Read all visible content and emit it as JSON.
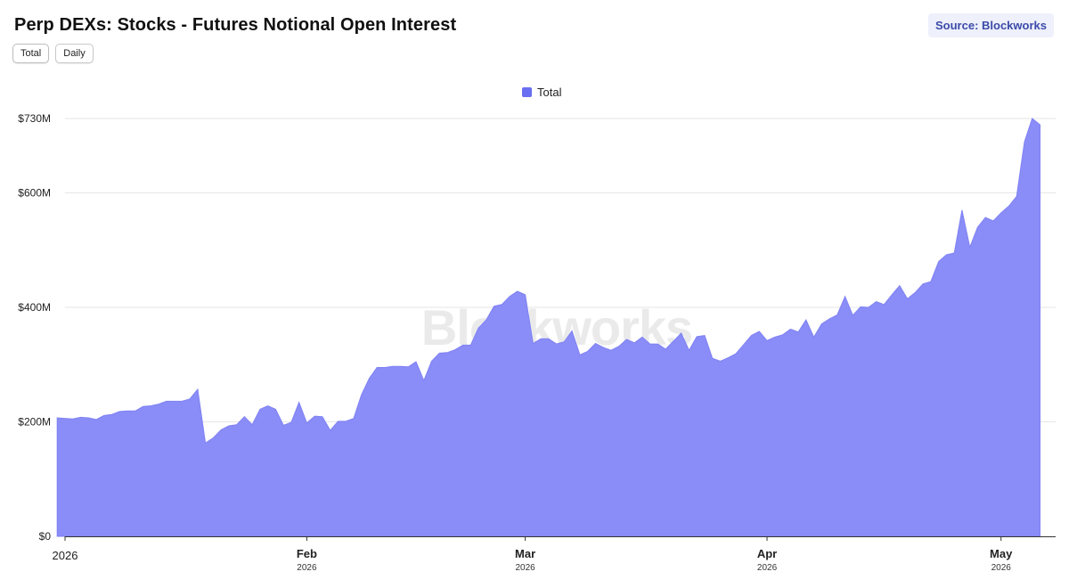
{
  "header": {
    "title": "Perp DEXs: Stocks - Futures Notional Open Interest",
    "source_label": "Source: Blockworks"
  },
  "toggles": [
    {
      "label": "Total"
    },
    {
      "label": "Daily"
    }
  ],
  "watermark": "Blockworks",
  "colors": {
    "area_fill": "#8a8cf7",
    "area_line": "#7f82f3",
    "legend_swatch": "#6a6ef0",
    "grid": "#e6e6e6"
  },
  "chart_data": {
    "type": "area",
    "title": "Perp DEXs: Stocks - Futures Notional Open Interest",
    "xlabel": "",
    "ylabel": "",
    "grid": true,
    "legend_position": "top-center",
    "xlim": [
      "2026-01-01",
      "2026-05-08"
    ],
    "ylim": [
      0,
      730
    ],
    "y_unit": "millions USD",
    "y_ticks": [
      {
        "value": 0,
        "label": "$0"
      },
      {
        "value": 200,
        "label": "$200M"
      },
      {
        "value": 400,
        "label": "$400M"
      },
      {
        "value": 600,
        "label": "$600M"
      },
      {
        "value": 730,
        "label": "$730M"
      }
    ],
    "x_ticks": [
      {
        "date": "2026-01-01",
        "label": "2026",
        "sublabel": ""
      },
      {
        "date": "2026-02-01",
        "label": "Feb",
        "sublabel": "2026"
      },
      {
        "date": "2026-03-01",
        "label": "Mar",
        "sublabel": "2026"
      },
      {
        "date": "2026-04-01",
        "label": "Apr",
        "sublabel": "2026"
      },
      {
        "date": "2026-05-01",
        "label": "May",
        "sublabel": "2026"
      }
    ],
    "series": [
      {
        "name": "Total",
        "points": [
          [
            "2025-12-31",
            207
          ],
          [
            "2026-01-02",
            205
          ],
          [
            "2026-01-03",
            208
          ],
          [
            "2026-01-04",
            207
          ],
          [
            "2026-01-05",
            204
          ],
          [
            "2026-01-06",
            211
          ],
          [
            "2026-01-07",
            213
          ],
          [
            "2026-01-08",
            218
          ],
          [
            "2026-01-09",
            219
          ],
          [
            "2026-01-10",
            219
          ],
          [
            "2026-01-11",
            227
          ],
          [
            "2026-01-12",
            228
          ],
          [
            "2026-01-13",
            231
          ],
          [
            "2026-01-14",
            236
          ],
          [
            "2026-01-15",
            236
          ],
          [
            "2026-01-16",
            236
          ],
          [
            "2026-01-17",
            240
          ],
          [
            "2026-01-18",
            257
          ],
          [
            "2026-01-19",
            163
          ],
          [
            "2026-01-20",
            172
          ],
          [
            "2026-01-21",
            186
          ],
          [
            "2026-01-22",
            193
          ],
          [
            "2026-01-23",
            195
          ],
          [
            "2026-01-24",
            209
          ],
          [
            "2026-01-25",
            195
          ],
          [
            "2026-01-26",
            222
          ],
          [
            "2026-01-27",
            228
          ],
          [
            "2026-01-28",
            222
          ],
          [
            "2026-01-29",
            194
          ],
          [
            "2026-01-30",
            199
          ],
          [
            "2026-01-31",
            234
          ],
          [
            "2026-02-01",
            198
          ],
          [
            "2026-02-02",
            210
          ],
          [
            "2026-02-03",
            209
          ],
          [
            "2026-02-04",
            185
          ],
          [
            "2026-02-05",
            201
          ],
          [
            "2026-02-06",
            201
          ],
          [
            "2026-02-07",
            206
          ],
          [
            "2026-02-08",
            247
          ],
          [
            "2026-02-09",
            276
          ],
          [
            "2026-02-10",
            295
          ],
          [
            "2026-02-11",
            295
          ],
          [
            "2026-02-12",
            297
          ],
          [
            "2026-02-13",
            297
          ],
          [
            "2026-02-14",
            296
          ],
          [
            "2026-02-15",
            305
          ],
          [
            "2026-02-16",
            272
          ],
          [
            "2026-02-17",
            306
          ],
          [
            "2026-02-18",
            320
          ],
          [
            "2026-02-19",
            321
          ],
          [
            "2026-02-20",
            326
          ],
          [
            "2026-02-21",
            334
          ],
          [
            "2026-02-22",
            334
          ],
          [
            "2026-02-23",
            364
          ],
          [
            "2026-02-24",
            378
          ],
          [
            "2026-02-25",
            402
          ],
          [
            "2026-02-26",
            405
          ],
          [
            "2026-02-27",
            419
          ],
          [
            "2026-02-28",
            428
          ],
          [
            "2026-03-01",
            422
          ],
          [
            "2026-03-02",
            337
          ],
          [
            "2026-03-03",
            345
          ],
          [
            "2026-03-04",
            345
          ],
          [
            "2026-03-05",
            336
          ],
          [
            "2026-03-06",
            340
          ],
          [
            "2026-03-07",
            359
          ],
          [
            "2026-03-08",
            317
          ],
          [
            "2026-03-09",
            323
          ],
          [
            "2026-03-10",
            337
          ],
          [
            "2026-03-11",
            330
          ],
          [
            "2026-03-12",
            325
          ],
          [
            "2026-03-13",
            332
          ],
          [
            "2026-03-14",
            344
          ],
          [
            "2026-03-15",
            338
          ],
          [
            "2026-03-16",
            348
          ],
          [
            "2026-03-17",
            336
          ],
          [
            "2026-03-18",
            336
          ],
          [
            "2026-03-19",
            327
          ],
          [
            "2026-03-20",
            341
          ],
          [
            "2026-03-21",
            355
          ],
          [
            "2026-03-22",
            325
          ],
          [
            "2026-03-23",
            349
          ],
          [
            "2026-03-24",
            351
          ],
          [
            "2026-03-25",
            311
          ],
          [
            "2026-03-26",
            306
          ],
          [
            "2026-03-27",
            312
          ],
          [
            "2026-03-28",
            319
          ],
          [
            "2026-03-29",
            335
          ],
          [
            "2026-03-30",
            351
          ],
          [
            "2026-03-31",
            358
          ],
          [
            "2026-04-01",
            342
          ],
          [
            "2026-04-02",
            348
          ],
          [
            "2026-04-03",
            352
          ],
          [
            "2026-04-04",
            362
          ],
          [
            "2026-04-05",
            357
          ],
          [
            "2026-04-06",
            378
          ],
          [
            "2026-04-07",
            348
          ],
          [
            "2026-04-08",
            371
          ],
          [
            "2026-04-09",
            380
          ],
          [
            "2026-04-10",
            387
          ],
          [
            "2026-04-11",
            419
          ],
          [
            "2026-04-12",
            386
          ],
          [
            "2026-04-13",
            401
          ],
          [
            "2026-04-14",
            400
          ],
          [
            "2026-04-15",
            410
          ],
          [
            "2026-04-16",
            405
          ],
          [
            "2026-04-17",
            422
          ],
          [
            "2026-04-18",
            438
          ],
          [
            "2026-04-19",
            415
          ],
          [
            "2026-04-20",
            426
          ],
          [
            "2026-04-21",
            441
          ],
          [
            "2026-04-22",
            445
          ],
          [
            "2026-04-23",
            480
          ],
          [
            "2026-04-24",
            492
          ],
          [
            "2026-04-25",
            495
          ],
          [
            "2026-04-26",
            570
          ],
          [
            "2026-04-27",
            505
          ],
          [
            "2026-04-28",
            540
          ],
          [
            "2026-04-29",
            557
          ],
          [
            "2026-04-30",
            551
          ],
          [
            "2026-05-01",
            565
          ],
          [
            "2026-05-02",
            577
          ],
          [
            "2026-05-03",
            594
          ],
          [
            "2026-05-04",
            689
          ],
          [
            "2026-05-05",
            730
          ],
          [
            "2026-05-06",
            719
          ]
        ]
      }
    ]
  }
}
